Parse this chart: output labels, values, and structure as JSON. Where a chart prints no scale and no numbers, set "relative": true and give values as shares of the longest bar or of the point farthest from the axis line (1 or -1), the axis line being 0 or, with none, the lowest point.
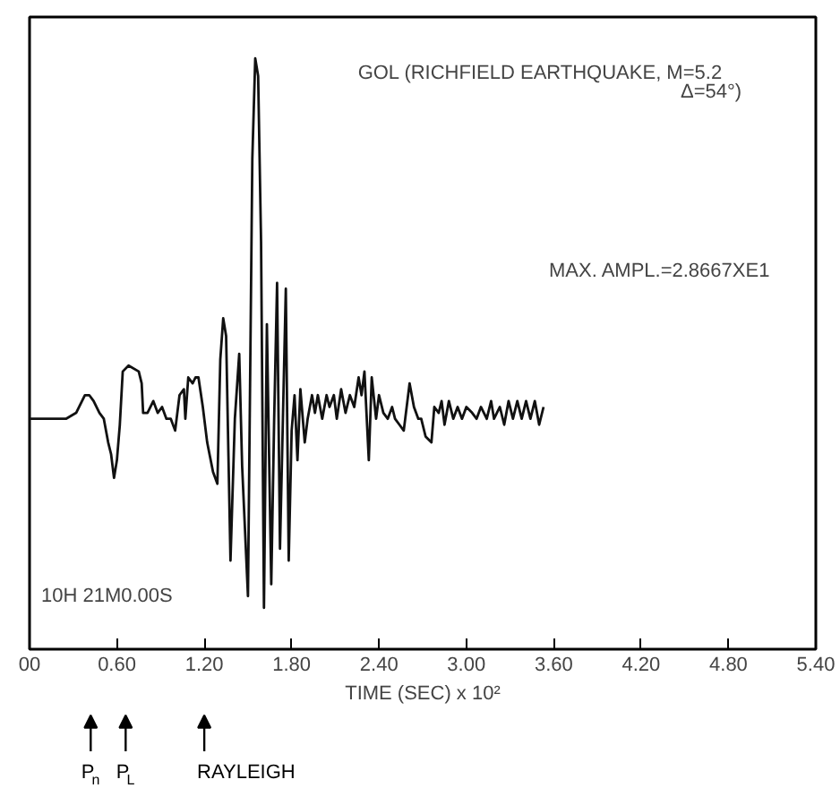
{
  "chart_data": {
    "type": "line",
    "relative": true,
    "title": "GOL (RICHFIELD EARTHQUAKE, M=5.2\nΔ=54°)",
    "xlabel": "TIME (SEC) x 10²",
    "xlim": [
      0,
      5.4
    ],
    "xticks": [
      {
        "value": 0,
        "label": "00"
      },
      {
        "value": 0.6,
        "label": "0.60"
      },
      {
        "value": 1.2,
        "label": "1.20"
      },
      {
        "value": 1.8,
        "label": "1.80"
      },
      {
        "value": 2.4,
        "label": "2.40"
      },
      {
        "value": 3.0,
        "label": "3.00"
      },
      {
        "value": 3.6,
        "label": "3.60"
      },
      {
        "value": 4.2,
        "label": "4.20"
      },
      {
        "value": 4.8,
        "label": "4.80"
      },
      {
        "value": 5.4,
        "label": "5.40"
      }
    ],
    "annotations": [
      "MAX. AMPL.=2.8667XE1",
      "10H 21M0.00S",
      "P$_{n}$",
      "P$_{L}$",
      "RAYLEIGH"
    ],
    "grid": false,
    "series": [
      {
        "color": "#111111",
        "x": [
          0.0,
          0.25,
          0.32,
          0.38,
          0.41,
          0.44,
          0.48,
          0.51,
          0.54,
          0.56,
          0.58,
          0.6,
          0.62,
          0.64,
          0.68,
          0.75,
          0.77,
          0.78,
          0.81,
          0.85,
          0.88,
          0.91,
          0.94,
          0.97,
          1.0,
          1.03,
          1.06,
          1.07,
          1.09,
          1.12,
          1.14,
          1.16,
          1.19,
          1.22,
          1.26,
          1.29,
          1.31,
          1.33,
          1.35,
          1.38,
          1.41,
          1.44,
          1.46,
          1.5,
          1.53,
          1.55,
          1.57,
          1.59,
          1.61,
          1.63,
          1.66,
          1.68,
          1.7,
          1.72,
          1.74,
          1.76,
          1.78,
          1.8,
          1.82,
          1.84,
          1.86,
          1.89,
          1.91,
          1.94,
          1.96,
          1.98,
          2.01,
          2.04,
          2.06,
          2.09,
          2.11,
          2.14,
          2.17,
          2.2,
          2.23,
          2.26,
          2.28,
          2.3,
          2.33,
          2.35,
          2.38,
          2.4,
          2.43,
          2.46,
          2.49,
          2.51,
          2.54,
          2.57,
          2.61,
          2.64,
          2.67,
          2.69,
          2.72,
          2.76,
          2.78,
          2.81,
          2.83,
          2.85,
          2.88,
          2.91,
          2.94,
          2.97,
          3.0,
          3.04,
          3.07,
          3.1,
          3.14,
          3.17,
          3.19,
          3.23,
          3.26,
          3.29,
          3.32,
          3.35,
          3.38,
          3.41,
          3.44,
          3.47,
          3.5,
          3.53
        ],
        "values": [
          0.39,
          0.39,
          0.4,
          0.43,
          0.43,
          0.42,
          0.4,
          0.39,
          0.35,
          0.33,
          0.29,
          0.32,
          0.38,
          0.47,
          0.48,
          0.47,
          0.45,
          0.4,
          0.4,
          0.42,
          0.4,
          0.41,
          0.39,
          0.39,
          0.37,
          0.43,
          0.44,
          0.39,
          0.46,
          0.45,
          0.46,
          0.46,
          0.41,
          0.35,
          0.3,
          0.28,
          0.49,
          0.56,
          0.53,
          0.15,
          0.39,
          0.5,
          0.31,
          0.09,
          0.83,
          1.0,
          0.97,
          0.69,
          0.07,
          0.55,
          0.11,
          0.39,
          0.62,
          0.17,
          0.39,
          0.61,
          0.15,
          0.37,
          0.43,
          0.32,
          0.44,
          0.35,
          0.39,
          0.43,
          0.4,
          0.43,
          0.39,
          0.43,
          0.41,
          0.43,
          0.39,
          0.44,
          0.4,
          0.43,
          0.41,
          0.46,
          0.43,
          0.47,
          0.32,
          0.46,
          0.39,
          0.43,
          0.4,
          0.39,
          0.41,
          0.39,
          0.38,
          0.37,
          0.45,
          0.41,
          0.39,
          0.39,
          0.36,
          0.35,
          0.41,
          0.4,
          0.42,
          0.38,
          0.42,
          0.39,
          0.41,
          0.39,
          0.41,
          0.4,
          0.39,
          0.41,
          0.39,
          0.42,
          0.39,
          0.41,
          0.38,
          0.42,
          0.39,
          0.42,
          0.39,
          0.42,
          0.39,
          0.42,
          0.38,
          0.41
        ]
      }
    ]
  }
}
